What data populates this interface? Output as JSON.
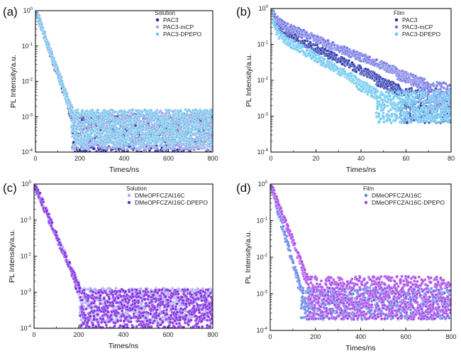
{
  "chart_data": [
    {
      "panel": "(a)",
      "type": "scatter",
      "xlabel": "Times/ns",
      "ylabel": "PL Intensity/a.u.",
      "yscale": "log",
      "xlim": [
        0,
        800
      ],
      "ylim": [
        0.0001,
        1
      ],
      "xticks": [
        0,
        200,
        400,
        600,
        800
      ],
      "xtick_labels": [
        "0",
        "200",
        "400",
        "600",
        "800"
      ],
      "yticks": [
        1,
        0.1,
        0.01,
        0.001,
        0.0001
      ],
      "ytick_labels": [
        [
          "10",
          "0"
        ],
        [
          "10",
          "-1"
        ],
        [
          "10",
          "-2"
        ],
        [
          "10",
          "-3"
        ],
        [
          "10",
          "-4"
        ]
      ],
      "legend_title": "Solution",
      "legend_position": "top-right",
      "series": [
        {
          "name": "PAC3",
          "color": "#1a1f9e",
          "tau_ns": 24,
          "floor": 0.0003,
          "noise_min": 0.0001,
          "noise_max": 0.0012
        },
        {
          "name": "PAC3-mCP",
          "color": "#9aa4ec",
          "tau_ns": 25,
          "floor": 0.0005,
          "noise_min": 0.00012,
          "noise_max": 0.0015
        },
        {
          "name": "PAC3-DPEPO",
          "color": "#6fc3ea",
          "tau_ns": 24.5,
          "floor": 0.0004,
          "noise_min": 0.00015,
          "noise_max": 0.0016
        }
      ]
    },
    {
      "panel": "(b)",
      "type": "scatter",
      "xlabel": "Times/ns",
      "ylabel": "PL Intensity/a.u.",
      "yscale": "log",
      "xlim": [
        0,
        80
      ],
      "ylim": [
        0.0001,
        1
      ],
      "xticks": [
        0,
        20,
        40,
        60,
        80
      ],
      "xtick_labels": [
        "0",
        "20",
        "40",
        "60",
        "80"
      ],
      "yticks": [
        1,
        0.1,
        0.01,
        0.001,
        0.0001
      ],
      "ytick_labels": [
        [
          "10",
          "0"
        ],
        [
          "10",
          "-1"
        ],
        [
          "10",
          "-2"
        ],
        [
          "10",
          "-3"
        ],
        [
          "10",
          "-4"
        ]
      ],
      "legend_title": "Film",
      "legend_position": "top-right",
      "series": [
        {
          "name": "PAC3",
          "color": "#1c2aa8",
          "fast_amp": 0.6,
          "fast_tau_ns": 1.2,
          "slow_amp": 0.32,
          "slow_tau_ns": 14,
          "floor": 0.002,
          "noise_min": 0.00065,
          "noise_max": 0.006
        },
        {
          "name": "PAC3-mCP",
          "color": "#6a6fe0",
          "fast_amp": 0.5,
          "fast_tau_ns": 1.5,
          "slow_amp": 0.45,
          "slow_tau_ns": 17,
          "floor": 0.003,
          "noise_min": 0.0013,
          "noise_max": 0.009
        },
        {
          "name": "PAC3-DPEPO",
          "color": "#62c4f0",
          "fast_amp": 0.65,
          "fast_tau_ns": 1.0,
          "slow_amp": 0.22,
          "slow_tau_ns": 12,
          "floor": 0.0015,
          "noise_min": 0.00065,
          "noise_max": 0.005
        }
      ]
    },
    {
      "panel": "(c)",
      "type": "scatter",
      "xlabel": "Times/ns",
      "ylabel": "PL Intensity/a.u.",
      "yscale": "log",
      "xlim": [
        0,
        800
      ],
      "ylim": [
        0.0001,
        1
      ],
      "xticks": [
        0,
        200,
        400,
        600,
        800
      ],
      "xtick_labels": [
        "0",
        "200",
        "400",
        "600",
        "800"
      ],
      "yticks": [
        1,
        0.1,
        0.01,
        0.001,
        0.0001
      ],
      "ytick_labels": [
        [
          "10",
          "0"
        ],
        [
          "10",
          "-1"
        ],
        [
          "10",
          "-2"
        ],
        [
          "10",
          "-3"
        ],
        [
          "10",
          "-4"
        ]
      ],
      "legend_title": "Solution",
      "legend_position": "top-right",
      "series": [
        {
          "name": "DMeOPFCZAI16C",
          "color": "#a3a8ee",
          "tau_ns": 30,
          "floor": 0.0004,
          "noise_min": 0.00015,
          "noise_max": 0.0013
        },
        {
          "name": "DMeOPFCZAI16C-DPEPO",
          "color": "#7a1fe0",
          "tau_ns": 30,
          "floor": 0.0004,
          "noise_min": 0.0001,
          "noise_max": 0.0012
        }
      ]
    },
    {
      "panel": "(d)",
      "type": "scatter",
      "xlabel": "Times/ns",
      "ylabel": "PL Intensity/a.u.",
      "yscale": "log",
      "xlim": [
        0,
        800
      ],
      "ylim": [
        0.0001,
        1
      ],
      "xticks": [
        0,
        200,
        400,
        600,
        800
      ],
      "xtick_labels": [
        "0",
        "200",
        "400",
        "600",
        "800"
      ],
      "yticks": [
        1,
        0.1,
        0.01,
        0.001,
        0.0001
      ],
      "ytick_labels": [
        [
          "10",
          "0"
        ],
        [
          "10",
          "-1"
        ],
        [
          "10",
          "-2"
        ],
        [
          "10",
          "-3"
        ],
        [
          "10",
          "-4"
        ]
      ],
      "legend_title": "Film",
      "legend_position": "top-right",
      "series": [
        {
          "name": "DMeOPFCZAI16C",
          "color": "#5b7de8",
          "tau_ns": 20,
          "floor": 0.0007,
          "noise_min": 0.0002,
          "noise_max": 0.0015
        },
        {
          "name": "DMeOPFCZAI16C-DPEPO",
          "color": "#a33ee8",
          "tau_ns": 27,
          "floor": 0.0012,
          "noise_min": 0.0002,
          "noise_max": 0.003
        }
      ]
    }
  ]
}
